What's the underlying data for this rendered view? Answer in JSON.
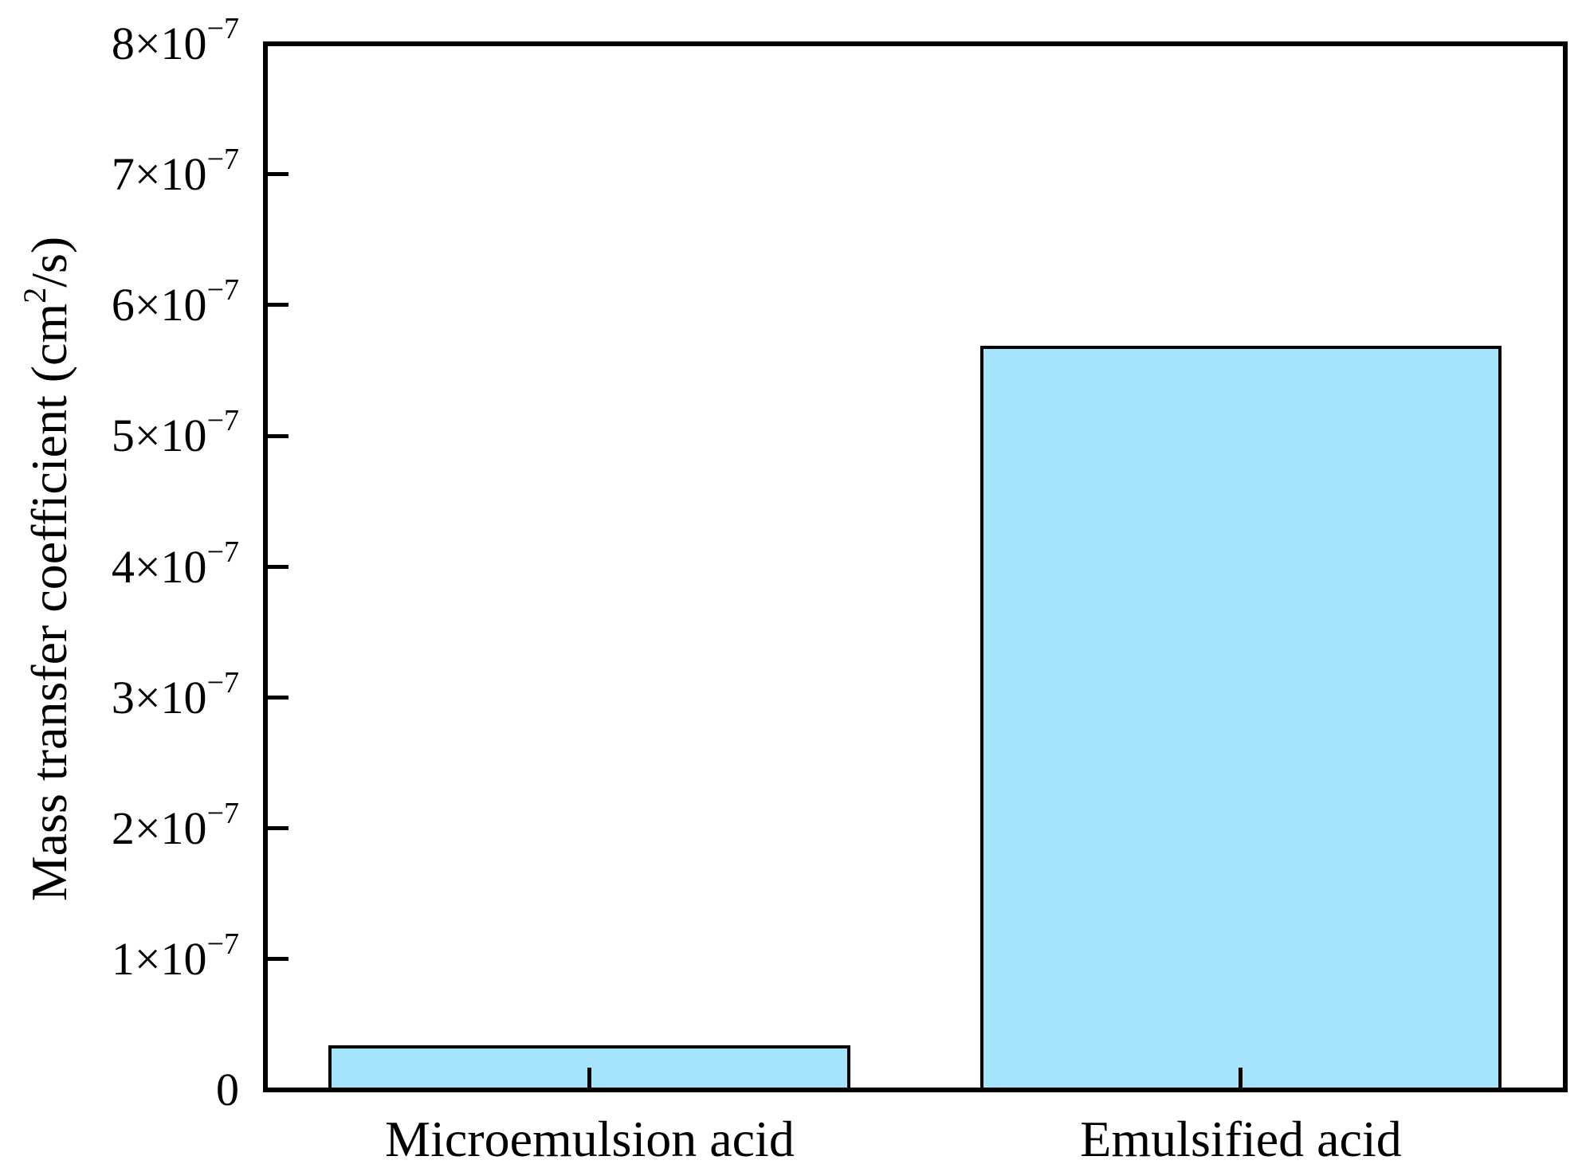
{
  "chart_data": {
    "type": "bar",
    "categories": [
      "Microemulsion acid",
      "Emulsified acid"
    ],
    "values": [
      3.2e-08,
      5.67e-07
    ],
    "title": "",
    "xlabel": "",
    "ylabel": "Mass transfer coefficient (cm2/s)",
    "ylim": [
      0,
      8e-07
    ],
    "ytick_values": [
      0,
      1e-07,
      2e-07,
      3e-07,
      4e-07,
      5e-07,
      6e-07,
      7e-07,
      8e-07
    ],
    "grid": false,
    "legend_position": "none",
    "bar_color": "#a6e3fc",
    "bar_edge_color": "#000000",
    "axis_color": "#000000",
    "tick_direction": "in"
  },
  "axis": {
    "y_title": {
      "pre": "Mass transfer coefficient (cm",
      "sup": "2",
      "post": "/s)"
    },
    "y_tick_labels": [
      {
        "base": "0",
        "exp": ""
      },
      {
        "base": "1×10",
        "exp": "−7"
      },
      {
        "base": "2×10",
        "exp": "−7"
      },
      {
        "base": "3×10",
        "exp": "−7"
      },
      {
        "base": "4×10",
        "exp": "−7"
      },
      {
        "base": "5×10",
        "exp": "−7"
      },
      {
        "base": "6×10",
        "exp": "−7"
      },
      {
        "base": "7×10",
        "exp": "−7"
      },
      {
        "base": "8×10",
        "exp": "−7"
      }
    ],
    "x_tick_labels": [
      "Microemulsion acid",
      "Emulsified acid"
    ]
  }
}
